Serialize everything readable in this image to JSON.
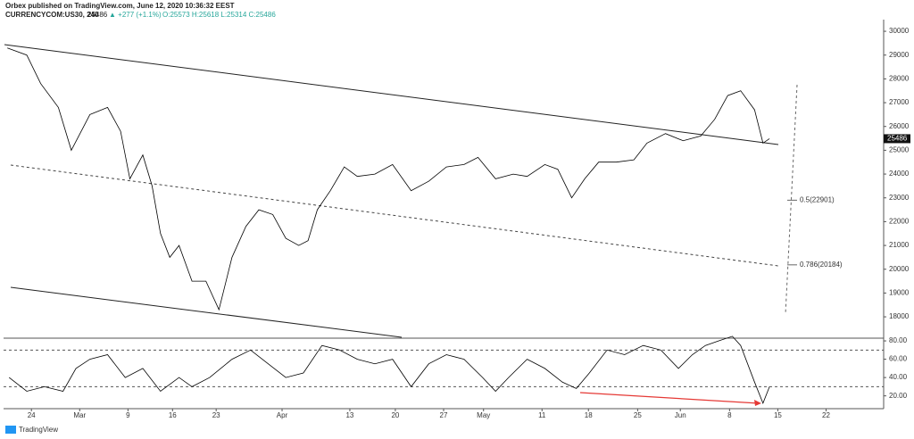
{
  "header": {
    "publisher": "Orbex published on TradingView.com, June 12, 2020 10:36:32 EEST",
    "symbol": "CURRENCYCOM:US30, 240",
    "price": "25486",
    "change": "▲ +277 (+1.1%)",
    "ohlc": "O:25573 H:25618 L:25314 C:25486"
  },
  "footer": {
    "brand": "TradingView"
  },
  "chart_data": [
    {
      "type": "line",
      "color": "#000000",
      "x": [
        -2.6,
        -0.5,
        1,
        2.9,
        4.3,
        6.3,
        8.2,
        9.6,
        10.6,
        12,
        13,
        13.9,
        14.9,
        15.9,
        17.3,
        18.8,
        20.2,
        21.6,
        23.1,
        24.5,
        26,
        27.4,
        28.8,
        29.8,
        30.8,
        32.2,
        33.7,
        35.1,
        37,
        38.9,
        40.9,
        42.8,
        44.7,
        46.6,
        48.1,
        50,
        51.9,
        53.4,
        55.3,
        56.7,
        58.2,
        59.6,
        61.1,
        63,
        64.9,
        66.3,
        68.3,
        70.2,
        72.1,
        73.6,
        75,
        76.4,
        77.9,
        78.8,
        79.5
      ],
      "values": [
        29300,
        29000,
        27800,
        26800,
        25000,
        26500,
        26800,
        25800,
        23800,
        24800,
        23500,
        21500,
        20500,
        21000,
        19500,
        19500,
        18300,
        20500,
        21800,
        22500,
        22300,
        21300,
        21000,
        21200,
        22500,
        23300,
        24300,
        23900,
        24000,
        24400,
        23300,
        23700,
        24300,
        24400,
        24700,
        23800,
        24000,
        23900,
        24400,
        24200,
        23000,
        23800,
        24500,
        24500,
        24600,
        25300,
        25700,
        25400,
        25600,
        26300,
        27300,
        27500,
        26700,
        25300,
        25486
      ],
      "xlim": [
        -3,
        91.8
      ],
      "ylim": [
        17140,
        30490
      ],
      "yticks": [
        18000,
        19000,
        20000,
        21000,
        22000,
        23000,
        24000,
        25000,
        26000,
        27000,
        28000,
        29000,
        30000
      ],
      "last_value": 25486,
      "annotations": [
        {
          "label": "0.5(22901)",
          "value": 22901
        },
        {
          "label": "0.786(20184)",
          "value": 20184
        }
      ]
    },
    {
      "type": "line",
      "color": "#000000",
      "x": [
        -2.4,
        -0.5,
        1.4,
        3.4,
        4.8,
        6.3,
        8.2,
        10.1,
        12,
        13.9,
        15.9,
        17.3,
        19.2,
        21.6,
        23.6,
        25.5,
        27.4,
        29.3,
        31.3,
        33.2,
        35.1,
        37,
        38.9,
        40.9,
        42.8,
        44.7,
        46.6,
        48.6,
        50,
        51.4,
        53.4,
        55.3,
        57.2,
        58.7,
        60.1,
        62,
        63.9,
        65.9,
        67.8,
        69.7,
        71.2,
        72.6,
        74,
        75.5,
        76.4,
        77.9,
        78.8,
        79.5
      ],
      "values": [
        40,
        25,
        30,
        25,
        50,
        60,
        65,
        40,
        50,
        25,
        40,
        30,
        40,
        60,
        70,
        55,
        40,
        45,
        75,
        70,
        60,
        55,
        60,
        30,
        55,
        65,
        60,
        40,
        25,
        40,
        60,
        50,
        35,
        28,
        45,
        70,
        65,
        75,
        70,
        50,
        65,
        75,
        80,
        85,
        75,
        35,
        12,
        30
      ],
      "xlim": [
        -3,
        91.8
      ],
      "ylim": [
        7,
        82
      ],
      "yticks": [
        {
          "value": 20,
          "label": "20.00"
        },
        {
          "value": 40,
          "label": "40.00"
        },
        {
          "value": 60,
          "label": "60.00"
        },
        {
          "value": 80,
          "label": "80.00"
        }
      ],
      "reference_lines": [
        70,
        30
      ],
      "xticks": [
        {
          "value": 0,
          "label": "24"
        },
        {
          "value": 5.2,
          "label": "Mar"
        },
        {
          "value": 10.4,
          "label": "9"
        },
        {
          "value": 15.2,
          "label": "16"
        },
        {
          "value": 19.9,
          "label": "23"
        },
        {
          "value": 27,
          "label": "Apr"
        },
        {
          "value": 34.3,
          "label": "13"
        },
        {
          "value": 39.2,
          "label": "20"
        },
        {
          "value": 44.4,
          "label": "27"
        },
        {
          "value": 48.7,
          "label": "May"
        },
        {
          "value": 55,
          "label": "11"
        },
        {
          "value": 60,
          "label": "18"
        },
        {
          "value": 65.3,
          "label": "25"
        },
        {
          "value": 69.9,
          "label": "Jun"
        },
        {
          "value": 75.2,
          "label": "8"
        },
        {
          "value": 80.4,
          "label": "15"
        },
        {
          "value": 85.6,
          "label": "22"
        }
      ]
    }
  ]
}
